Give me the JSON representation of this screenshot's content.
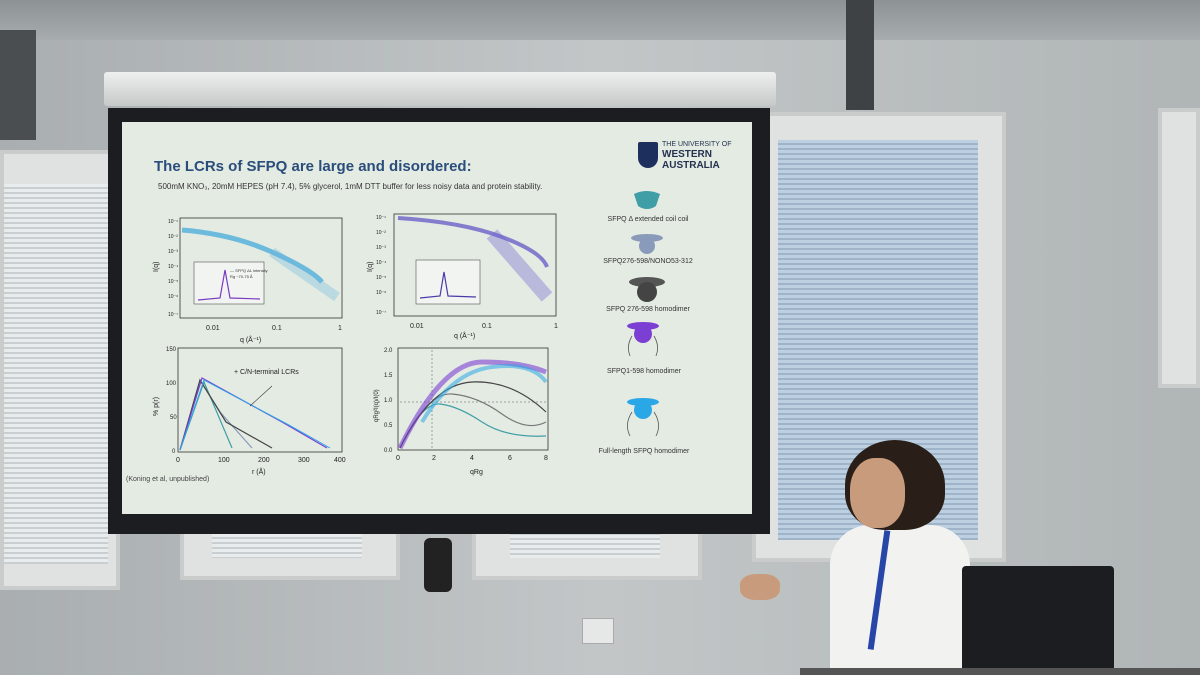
{
  "slide": {
    "title": "The LCRs of SFPQ are large and disordered:",
    "bullet": "500mM KNO₃, 20mM HEPES (pH 7.4), 5% glycerol, 1mM DTT buffer for less noisy data and protein stability.",
    "logo": {
      "line1": "THE UNIVERSITY OF",
      "line2": "WESTERN",
      "line3": "AUSTRALIA"
    },
    "citation": "(Koning et al, unpublished)",
    "legend": [
      {
        "label": "SFPQ Δ extended coil coil",
        "color": "#3f9ea6"
      },
      {
        "label": "SFPQ276-598/NONO53-312",
        "color": "#8a9aba"
      },
      {
        "label": "SFPQ 276-598 homodimer",
        "color": "#555555"
      },
      {
        "label": "SFPQ1-598 homodimer",
        "color": "#7b3fd4"
      },
      {
        "label": "Full-length SFPQ homodimer",
        "color": "#2aa7e6"
      }
    ],
    "plot1": {
      "ylabel": "I(q)",
      "xlabel": "q (Å⁻¹)",
      "xticks": [
        "0.01",
        "0.1",
        "1"
      ],
      "yticks": [
        "10⁻¹",
        "10⁻²",
        "10⁻³",
        "10⁻⁴",
        "10⁻⁵",
        "10⁻⁶",
        "10⁻⁷"
      ],
      "inset_text1": "— SFPQ ΔL intensity",
      "inset_text2": "Rg ~70-75 Å"
    },
    "plot2": {
      "ylabel": "I(q)",
      "xlabel": "q (Å⁻¹)",
      "xticks": [
        "0.01",
        "0.1",
        "1"
      ],
      "yticks": [
        "10⁻¹",
        "10⁻²",
        "10⁻³",
        "10⁻⁴",
        "10⁻⁵",
        "10⁻⁶",
        "10⁻⁷"
      ]
    },
    "plot3": {
      "ylabel": "% p(r)",
      "xlabel": "r (Å)",
      "xticks": [
        "0",
        "100",
        "200",
        "300",
        "400"
      ],
      "yticks": [
        "150",
        "100",
        "50",
        "0"
      ],
      "annotation": "+ C/N-terminal LCRs"
    },
    "plot4": {
      "ylabel": "qRg²I(q)/I(0)",
      "xlabel": "qRg",
      "xticks": [
        "0",
        "2",
        "4",
        "6",
        "8"
      ],
      "yticks": [
        "2.0",
        "1.5",
        "1.0",
        "0.5",
        "0.0"
      ]
    }
  }
}
